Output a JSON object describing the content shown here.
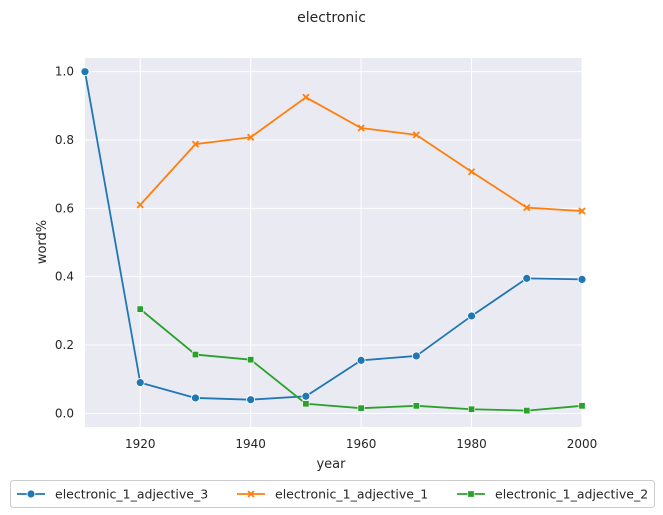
{
  "chart_data": {
    "type": "line",
    "title": "electronic",
    "xlabel": "year",
    "ylabel": "word%",
    "xlim": [
      1910,
      2000
    ],
    "ylim": [
      -0.04,
      1.04
    ],
    "xticks": [
      1920,
      1940,
      1960,
      1980,
      2000
    ],
    "yticks": [
      0.0,
      0.2,
      0.4,
      0.6,
      0.8,
      1.0
    ],
    "xtick_labels": [
      "1920",
      "1940",
      "1960",
      "1980",
      "2000"
    ],
    "ytick_labels": [
      "0.0",
      "0.2",
      "0.4",
      "0.6",
      "0.8",
      "1.0"
    ],
    "grid": true,
    "legend_position": "bottom-center",
    "background": "#eaeaf2",
    "series": [
      {
        "name": "electronic_1_adjective_3",
        "color": "#1f77b4",
        "marker": "circle",
        "x": [
          1910,
          1920,
          1930,
          1940,
          1950,
          1960,
          1970,
          1980,
          1990,
          2000
        ],
        "values": [
          1.0,
          0.09,
          0.045,
          0.04,
          0.05,
          0.155,
          0.168,
          0.285,
          0.395,
          0.392
        ]
      },
      {
        "name": "electronic_1_adjective_1",
        "color": "#ff7f0e",
        "marker": "x",
        "x": [
          1920,
          1930,
          1940,
          1950,
          1960,
          1970,
          1980,
          1990,
          2000
        ],
        "values": [
          0.61,
          0.788,
          0.808,
          0.925,
          0.835,
          0.815,
          0.707,
          0.602,
          0.592
        ]
      },
      {
        "name": "electronic_1_adjective_2",
        "color": "#2ca02c",
        "marker": "square",
        "x": [
          1920,
          1930,
          1940,
          1950,
          1960,
          1970,
          1980,
          1990,
          2000
        ],
        "values": [
          0.305,
          0.172,
          0.157,
          0.028,
          0.015,
          0.022,
          0.012,
          0.008,
          0.022
        ]
      }
    ]
  }
}
